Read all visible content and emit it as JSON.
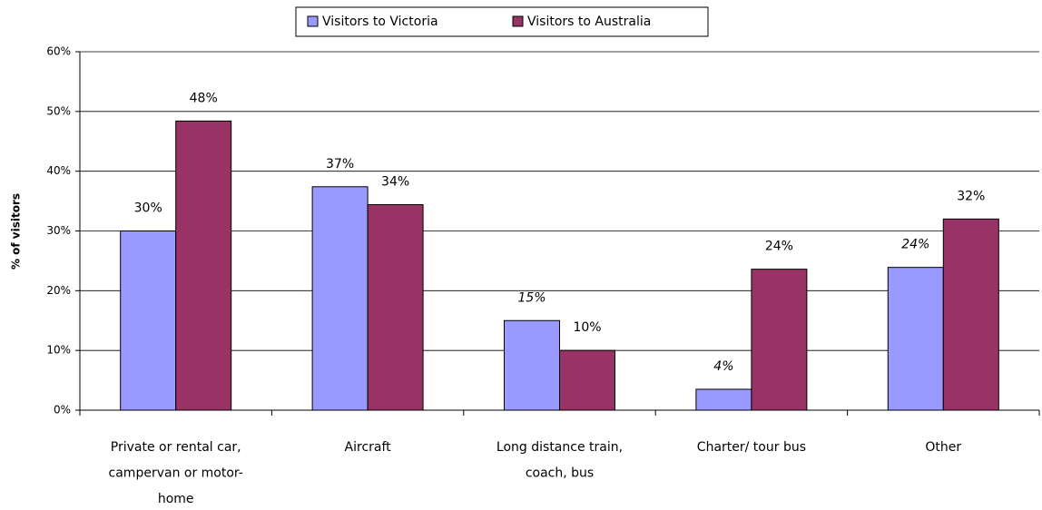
{
  "chart_data": {
    "type": "bar",
    "y_label": "% of visitors",
    "categories": [
      [
        "Private or rental car,",
        "campervan or motor-",
        "home"
      ],
      [
        "Aircraft"
      ],
      [
        "Long distance train,",
        "coach, bus"
      ],
      [
        "Charter/ tour bus"
      ],
      [
        "Other"
      ]
    ],
    "series": [
      {
        "name": "Visitors to Victoria",
        "color": "#9999ff",
        "values": [
          30,
          37.4,
          15,
          3.5,
          23.9
        ],
        "value_labels": [
          "30%",
          "37%",
          "15%",
          "4%",
          "24%"
        ],
        "value_label_colors": [
          "#000000",
          "#000000",
          "#ff0000",
          "#ff0000",
          "#ff0000"
        ]
      },
      {
        "name": "Visitors to Australia",
        "color": "#993366",
        "values": [
          48.4,
          34.4,
          10,
          23.6,
          32
        ],
        "value_labels": [
          "48%",
          "34%",
          "10%",
          "24%",
          "32%"
        ],
        "value_label_colors": [
          "#000000",
          "#000000",
          "#000000",
          "#000000",
          "#000000"
        ]
      }
    ],
    "ylim": [
      0,
      60
    ],
    "yticks": [
      {
        "value": 0,
        "label": "0%"
      },
      {
        "value": 10,
        "label": "10%"
      },
      {
        "value": 20,
        "label": "20%"
      },
      {
        "value": 30,
        "label": "30%"
      },
      {
        "value": 40,
        "label": "40%"
      },
      {
        "value": 50,
        "label": "50%"
      },
      {
        "value": 60,
        "label": "60%"
      }
    ],
    "grid": true,
    "legend": "top"
  }
}
